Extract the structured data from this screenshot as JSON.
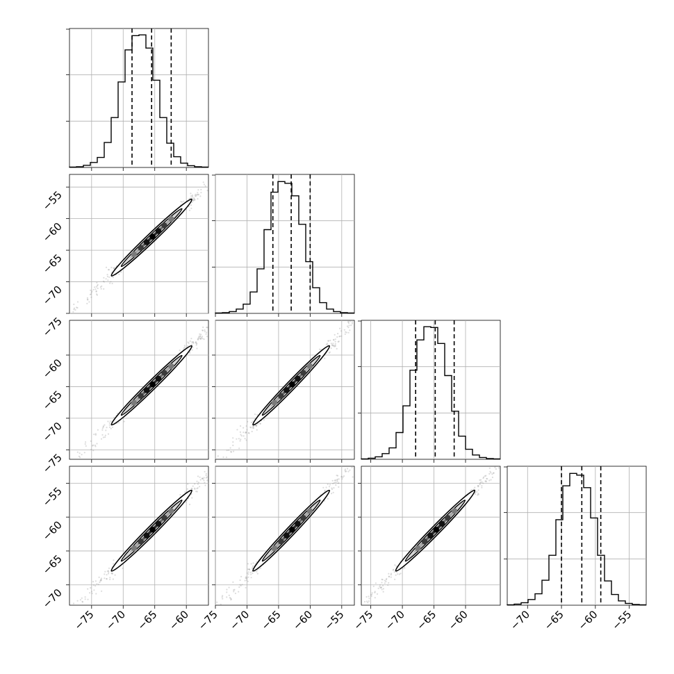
{
  "chart_data": {
    "type": "corner",
    "title": "",
    "grid": true,
    "quantiles_marked": [
      0.16,
      0.5,
      0.84
    ],
    "parameters": [
      {
        "median": -65.5,
        "q16": -68.6,
        "q84": -62.4,
        "range": [
          -78.5,
          -56.5
        ],
        "ticks": [
          -75,
          -70,
          -65,
          -60
        ],
        "tick_labels": [
          "−75",
          "−70",
          "−65",
          "−60"
        ]
      },
      {
        "median": -63.0,
        "q16": -65.9,
        "q84": -60.0,
        "range": [
          -75,
          -53
        ],
        "ticks": [
          -75,
          -70,
          -65,
          -60,
          -55
        ],
        "tick_labels": [
          "−75",
          "−70",
          "−65",
          "−60",
          "−55"
        ]
      },
      {
        "median": -64.8,
        "q16": -67.9,
        "q84": -61.8,
        "range": [
          -76.5,
          -54.5
        ],
        "ticks": [
          -75,
          -70,
          -65,
          -60
        ],
        "tick_labels": [
          "−75",
          "−70",
          "−65",
          "−60"
        ]
      },
      {
        "median": -62.0,
        "q16": -65.0,
        "q84": -59.2,
        "range": [
          -73,
          -52.5
        ],
        "ticks": [
          -70,
          -65,
          -60,
          -55
        ],
        "tick_labels": [
          "−70",
          "−65",
          "−60",
          "−55"
        ]
      }
    ],
    "histograms": [
      {
        "counts": [
          1,
          2,
          6,
          14,
          28,
          70,
          140,
          240,
          330,
          370,
          372,
          335,
          245,
          140,
          68,
          30,
          12,
          5,
          2,
          1
        ],
        "ylim": [
          0,
          390
        ]
      },
      {
        "counts": [
          1,
          2,
          5,
          12,
          26,
          60,
          125,
          235,
          340,
          370,
          365,
          330,
          250,
          145,
          72,
          30,
          12,
          5,
          2,
          1
        ],
        "ylim": [
          0,
          390
        ]
      },
      {
        "counts": [
          1,
          3,
          7,
          16,
          32,
          75,
          150,
          250,
          335,
          372,
          370,
          325,
          235,
          135,
          65,
          28,
          12,
          5,
          2,
          1
        ],
        "ylim": [
          0,
          390
        ]
      },
      {
        "counts": [
          1,
          3,
          7,
          16,
          32,
          70,
          140,
          240,
          335,
          370,
          365,
          330,
          245,
          140,
          68,
          30,
          12,
          5,
          2,
          1
        ],
        "ylim": [
          0,
          390
        ]
      }
    ],
    "correlation": 0.995,
    "std_minor": 0.25
  }
}
